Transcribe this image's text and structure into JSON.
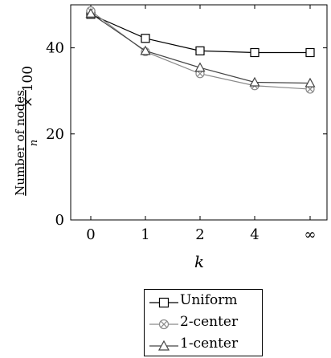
{
  "chart_data": {
    "type": "line",
    "categories": [
      "0",
      "1",
      "2",
      "4",
      "∞"
    ],
    "xlabel": "k",
    "ylabel_fraction_numerator": "Number of nodes",
    "ylabel_fraction_denominator": "n",
    "ylabel_multiplier": "× 100",
    "ylim": [
      0,
      50
    ],
    "yticks": [
      0,
      20,
      40
    ],
    "grid": false,
    "legend_position": "bottom-center",
    "series": [
      {
        "name": "Uniform",
        "marker": "square",
        "color": "#000000",
        "values": [
          47.8,
          42.2,
          39.3,
          38.9,
          38.9
        ]
      },
      {
        "name": "2-center",
        "marker": "otimes",
        "color": "#8a8a8a",
        "values": [
          48.6,
          39.1,
          34.0,
          31.2,
          30.4
        ]
      },
      {
        "name": "1-center",
        "marker": "triangle",
        "color": "#444444",
        "values": [
          48.0,
          39.3,
          35.4,
          32.0,
          31.8
        ]
      }
    ]
  }
}
